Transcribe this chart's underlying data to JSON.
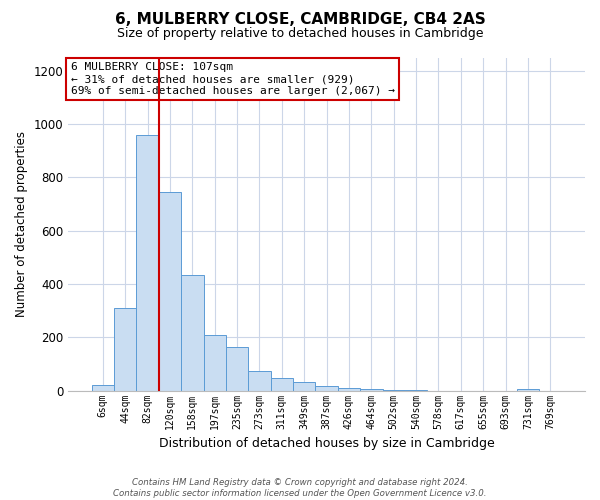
{
  "title": "6, MULBERRY CLOSE, CAMBRIDGE, CB4 2AS",
  "subtitle": "Size of property relative to detached houses in Cambridge",
  "xlabel": "Distribution of detached houses by size in Cambridge",
  "ylabel": "Number of detached properties",
  "bar_labels": [
    "6sqm",
    "44sqm",
    "82sqm",
    "120sqm",
    "158sqm",
    "197sqm",
    "235sqm",
    "273sqm",
    "311sqm",
    "349sqm",
    "387sqm",
    "426sqm",
    "464sqm",
    "502sqm",
    "540sqm",
    "578sqm",
    "617sqm",
    "655sqm",
    "693sqm",
    "731sqm",
    "769sqm"
  ],
  "bar_heights": [
    20,
    310,
    960,
    745,
    435,
    210,
    165,
    75,
    47,
    33,
    17,
    10,
    5,
    3,
    2,
    0,
    0,
    0,
    0,
    8,
    0
  ],
  "bar_color": "#c9ddf2",
  "bar_edge_color": "#5b9bd5",
  "vline_x_index": 2,
  "vline_color": "#cc0000",
  "annotation_line1": "6 MULBERRY CLOSE: 107sqm",
  "annotation_line2": "← 31% of detached houses are smaller (929)",
  "annotation_line3": "69% of semi-detached houses are larger (2,067) →",
  "annotation_box_color": "#ffffff",
  "annotation_box_edge": "#cc0000",
  "ylim": [
    0,
    1250
  ],
  "yticks": [
    0,
    200,
    400,
    600,
    800,
    1000,
    1200
  ],
  "footer_line1": "Contains HM Land Registry data © Crown copyright and database right 2024.",
  "footer_line2": "Contains public sector information licensed under the Open Government Licence v3.0.",
  "background_color": "#ffffff",
  "grid_color": "#ccd6e8"
}
